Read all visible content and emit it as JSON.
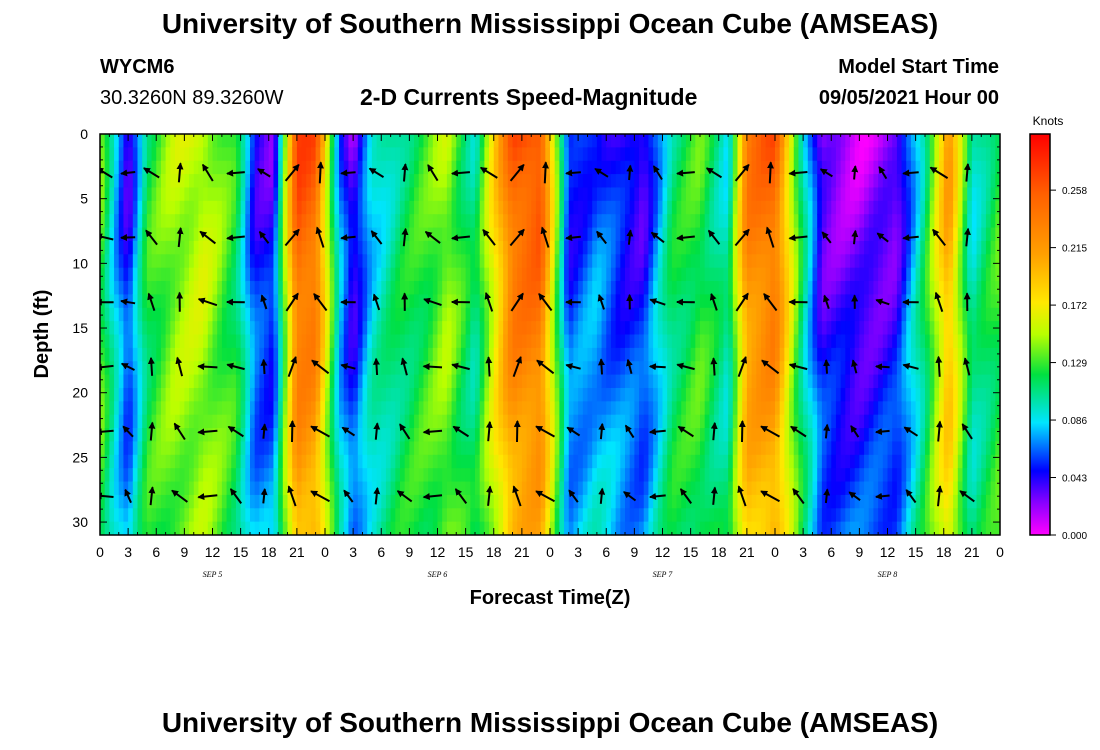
{
  "header": {
    "title": "University of Southern Mississippi Ocean Cube (AMSEAS)",
    "station_id": "WYCM6",
    "coordinates": "30.3260N  89.3260W",
    "subtitle": "2-D Currents Speed-Magnitude",
    "model_start_label": "Model Start Time",
    "model_start_value": "09/05/2021 Hour 00"
  },
  "footer": {
    "title": "University of Southern Mississippi Ocean Cube (AMSEAS)"
  },
  "chart_data": {
    "type": "heatmap",
    "title": "2-D Currents Speed-Magnitude",
    "xlabel": "Forecast Time(Z)",
    "ylabel": "Depth (ft)",
    "x_hours_range": [
      0,
      96
    ],
    "y_range": [
      0,
      31
    ],
    "y_inverted": true,
    "x_tick_labels": [
      "0",
      "3",
      "6",
      "9",
      "12",
      "15",
      "18",
      "21",
      "0",
      "3",
      "6",
      "9",
      "12",
      "15",
      "18",
      "21",
      "0",
      "3",
      "6",
      "9",
      "12",
      "15",
      "18",
      "21",
      "0",
      "3",
      "6",
      "9",
      "12",
      "15",
      "18",
      "21",
      "0"
    ],
    "y_ticks": [
      0,
      5,
      10,
      15,
      20,
      25,
      30
    ],
    "day_labels": [
      {
        "label": "SEP 5",
        "hour": 12
      },
      {
        "label": "SEP 6",
        "hour": 36
      },
      {
        "label": "SEP 7",
        "hour": 60
      },
      {
        "label": "SEP 8",
        "hour": 84
      }
    ],
    "colorbar": {
      "unit": "Knots",
      "min": 0.0,
      "max": 0.3,
      "tick_labels": [
        "0.258",
        "0.215",
        "0.172",
        "0.129",
        "0.086",
        "0.043",
        "0.000"
      ],
      "tick_values": [
        0.258,
        0.215,
        0.172,
        0.129,
        0.086,
        0.043,
        0.0
      ]
    },
    "surface_speed_by_hour": [
      {
        "hour": 0,
        "speed": 0.14
      },
      {
        "hour": 1.5,
        "speed": 0.08
      },
      {
        "hour": 3,
        "speed": 0.03
      },
      {
        "hour": 5,
        "speed": 0.12
      },
      {
        "hour": 8,
        "speed": 0.15
      },
      {
        "hour": 11,
        "speed": 0.16
      },
      {
        "hour": 14.5,
        "speed": 0.12
      },
      {
        "hour": 16.5,
        "speed": 0.04
      },
      {
        "hour": 18.5,
        "speed": 0.03
      },
      {
        "hour": 21,
        "speed": 0.27
      },
      {
        "hour": 23,
        "speed": 0.26
      },
      {
        "hour": 25.5,
        "speed": 0.07
      },
      {
        "hour": 27,
        "speed": 0.02
      },
      {
        "hour": 29,
        "speed": 0.08
      },
      {
        "hour": 32,
        "speed": 0.11
      },
      {
        "hour": 35,
        "speed": 0.13
      },
      {
        "hour": 37,
        "speed": 0.15
      },
      {
        "hour": 40,
        "speed": 0.1
      },
      {
        "hour": 44,
        "speed": 0.26
      },
      {
        "hour": 47,
        "speed": 0.27
      },
      {
        "hour": 50,
        "speed": 0.04
      },
      {
        "hour": 53,
        "speed": 0.06
      },
      {
        "hour": 55.5,
        "speed": 0.04
      },
      {
        "hour": 58,
        "speed": 0.03
      },
      {
        "hour": 61,
        "speed": 0.11
      },
      {
        "hour": 64,
        "speed": 0.13
      },
      {
        "hour": 67,
        "speed": 0.09
      },
      {
        "hour": 69,
        "speed": 0.24
      },
      {
        "hour": 72,
        "speed": 0.26
      },
      {
        "hour": 75,
        "speed": 0.1
      },
      {
        "hour": 77,
        "speed": 0.02
      },
      {
        "hour": 81,
        "speed": 0.01
      },
      {
        "hour": 85,
        "speed": 0.02
      },
      {
        "hour": 88,
        "speed": 0.11
      },
      {
        "hour": 90.5,
        "speed": 0.22
      },
      {
        "hour": 93,
        "speed": 0.09
      },
      {
        "hour": 96,
        "speed": 0.13
      }
    ],
    "arrow_grid": {
      "hours": [
        0.5,
        3,
        5.5,
        8.5,
        11.5,
        14.5,
        17.5,
        20.5,
        23.5,
        26.5,
        29.5,
        32.5,
        35.5,
        38.5,
        41.5,
        44.5,
        47.5,
        50.5,
        53.5,
        56.5,
        59.5,
        62.5,
        65.5,
        68.5,
        71.5,
        74.5,
        77.5,
        80.5,
        83.5,
        86.5,
        89.5,
        92.5
      ],
      "depths_ft": [
        3,
        8,
        13,
        18,
        23,
        28
      ]
    }
  }
}
